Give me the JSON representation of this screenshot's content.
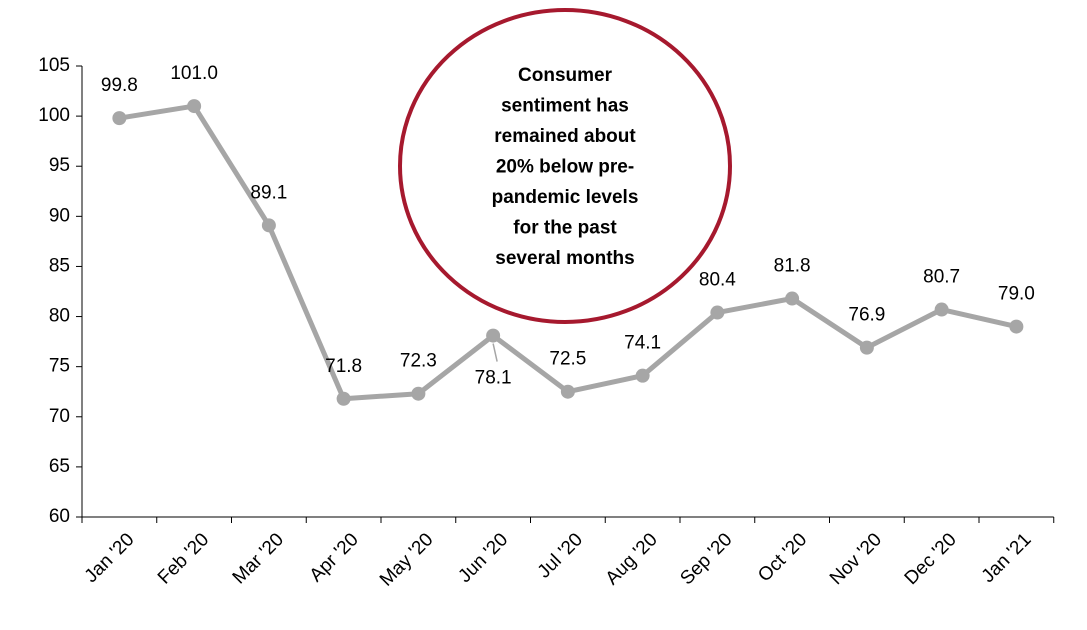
{
  "chart_data": {
    "type": "line",
    "categories": [
      "Jan '20",
      "Feb '20",
      "Mar '20",
      "Apr '20",
      "May '20",
      "Jun '20",
      "Jul '20",
      "Aug '20",
      "Sep '20",
      "Oct '20",
      "Nov '20",
      "Dec '20",
      "Jan '21"
    ],
    "series": [
      {
        "color": "#a6a6a6",
        "values": [
          99.8,
          101,
          89.1,
          71.8,
          72.3,
          78.1,
          72.5,
          74.1,
          80.4,
          81.8,
          76.9,
          80.7,
          79
        ],
        "value_labels": [
          "99.8",
          "101.0",
          "89.1",
          "71.8",
          "72.3",
          "78.1",
          "72.5",
          "74.1",
          "80.4",
          "81.8",
          "76.9",
          "80.7",
          "79.0"
        ]
      }
    ],
    "ylim": [
      60,
      105
    ],
    "yticks": [
      60,
      65,
      70,
      75,
      80,
      85,
      90,
      95,
      100,
      105
    ],
    "annotation": {
      "lines": [
        "Consumer",
        "sentiment has",
        "remained about",
        "20% below pre-",
        "pandemic levels",
        "for the past",
        "several months"
      ],
      "color": "#a6192e"
    }
  }
}
